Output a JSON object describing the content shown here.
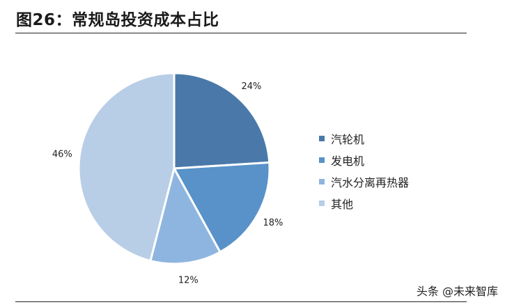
{
  "title": "图26：常规岛投资成本占比",
  "chart_data": {
    "type": "pie",
    "labels": [
      "汽轮机",
      "发电机",
      "汽水分离再热器",
      "其他"
    ],
    "values": [
      24,
      18,
      12,
      46
    ],
    "value_labels": [
      "24%",
      "18%",
      "12%",
      "46%"
    ],
    "colors": [
      "#4a79a9",
      "#5892c9",
      "#8eb5df",
      "#b8cde6"
    ],
    "start_angle_deg": 90,
    "direction": "clockwise",
    "legend_position": "right"
  },
  "watermark": "头条 @未来智库"
}
